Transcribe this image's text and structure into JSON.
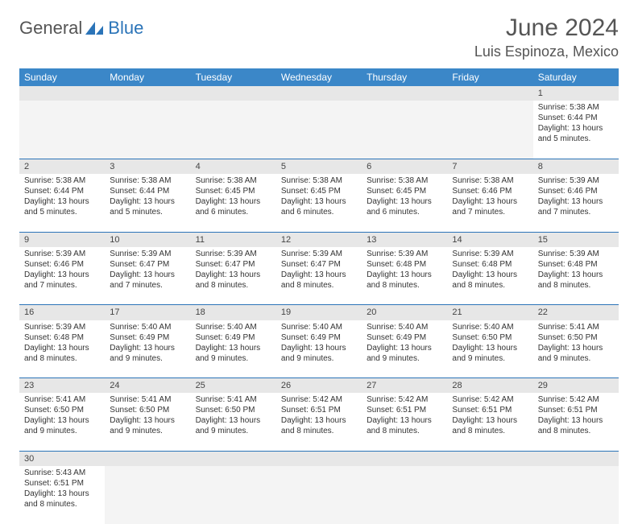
{
  "logo": {
    "part1": "General",
    "part2": "Blue"
  },
  "title": "June 2024",
  "location": "Luis Espinoza, Mexico",
  "colors": {
    "header_bg": "#3b87c8",
    "header_text": "#ffffff",
    "daynum_bg": "#e7e7e7",
    "cell_border": "#2b74b8",
    "logo_accent": "#2b74b8",
    "text": "#333333"
  },
  "dayHeaders": [
    "Sunday",
    "Monday",
    "Tuesday",
    "Wednesday",
    "Thursday",
    "Friday",
    "Saturday"
  ],
  "weeks": [
    [
      null,
      null,
      null,
      null,
      null,
      null,
      {
        "n": "1",
        "sr": "Sunrise: 5:38 AM",
        "ss": "Sunset: 6:44 PM",
        "dl": "Daylight: 13 hours and 5 minutes."
      }
    ],
    [
      {
        "n": "2",
        "sr": "Sunrise: 5:38 AM",
        "ss": "Sunset: 6:44 PM",
        "dl": "Daylight: 13 hours and 5 minutes."
      },
      {
        "n": "3",
        "sr": "Sunrise: 5:38 AM",
        "ss": "Sunset: 6:44 PM",
        "dl": "Daylight: 13 hours and 5 minutes."
      },
      {
        "n": "4",
        "sr": "Sunrise: 5:38 AM",
        "ss": "Sunset: 6:45 PM",
        "dl": "Daylight: 13 hours and 6 minutes."
      },
      {
        "n": "5",
        "sr": "Sunrise: 5:38 AM",
        "ss": "Sunset: 6:45 PM",
        "dl": "Daylight: 13 hours and 6 minutes."
      },
      {
        "n": "6",
        "sr": "Sunrise: 5:38 AM",
        "ss": "Sunset: 6:45 PM",
        "dl": "Daylight: 13 hours and 6 minutes."
      },
      {
        "n": "7",
        "sr": "Sunrise: 5:38 AM",
        "ss": "Sunset: 6:46 PM",
        "dl": "Daylight: 13 hours and 7 minutes."
      },
      {
        "n": "8",
        "sr": "Sunrise: 5:39 AM",
        "ss": "Sunset: 6:46 PM",
        "dl": "Daylight: 13 hours and 7 minutes."
      }
    ],
    [
      {
        "n": "9",
        "sr": "Sunrise: 5:39 AM",
        "ss": "Sunset: 6:46 PM",
        "dl": "Daylight: 13 hours and 7 minutes."
      },
      {
        "n": "10",
        "sr": "Sunrise: 5:39 AM",
        "ss": "Sunset: 6:47 PM",
        "dl": "Daylight: 13 hours and 7 minutes."
      },
      {
        "n": "11",
        "sr": "Sunrise: 5:39 AM",
        "ss": "Sunset: 6:47 PM",
        "dl": "Daylight: 13 hours and 8 minutes."
      },
      {
        "n": "12",
        "sr": "Sunrise: 5:39 AM",
        "ss": "Sunset: 6:47 PM",
        "dl": "Daylight: 13 hours and 8 minutes."
      },
      {
        "n": "13",
        "sr": "Sunrise: 5:39 AM",
        "ss": "Sunset: 6:48 PM",
        "dl": "Daylight: 13 hours and 8 minutes."
      },
      {
        "n": "14",
        "sr": "Sunrise: 5:39 AM",
        "ss": "Sunset: 6:48 PM",
        "dl": "Daylight: 13 hours and 8 minutes."
      },
      {
        "n": "15",
        "sr": "Sunrise: 5:39 AM",
        "ss": "Sunset: 6:48 PM",
        "dl": "Daylight: 13 hours and 8 minutes."
      }
    ],
    [
      {
        "n": "16",
        "sr": "Sunrise: 5:39 AM",
        "ss": "Sunset: 6:48 PM",
        "dl": "Daylight: 13 hours and 8 minutes."
      },
      {
        "n": "17",
        "sr": "Sunrise: 5:40 AM",
        "ss": "Sunset: 6:49 PM",
        "dl": "Daylight: 13 hours and 9 minutes."
      },
      {
        "n": "18",
        "sr": "Sunrise: 5:40 AM",
        "ss": "Sunset: 6:49 PM",
        "dl": "Daylight: 13 hours and 9 minutes."
      },
      {
        "n": "19",
        "sr": "Sunrise: 5:40 AM",
        "ss": "Sunset: 6:49 PM",
        "dl": "Daylight: 13 hours and 9 minutes."
      },
      {
        "n": "20",
        "sr": "Sunrise: 5:40 AM",
        "ss": "Sunset: 6:49 PM",
        "dl": "Daylight: 13 hours and 9 minutes."
      },
      {
        "n": "21",
        "sr": "Sunrise: 5:40 AM",
        "ss": "Sunset: 6:50 PM",
        "dl": "Daylight: 13 hours and 9 minutes."
      },
      {
        "n": "22",
        "sr": "Sunrise: 5:41 AM",
        "ss": "Sunset: 6:50 PM",
        "dl": "Daylight: 13 hours and 9 minutes."
      }
    ],
    [
      {
        "n": "23",
        "sr": "Sunrise: 5:41 AM",
        "ss": "Sunset: 6:50 PM",
        "dl": "Daylight: 13 hours and 9 minutes."
      },
      {
        "n": "24",
        "sr": "Sunrise: 5:41 AM",
        "ss": "Sunset: 6:50 PM",
        "dl": "Daylight: 13 hours and 9 minutes."
      },
      {
        "n": "25",
        "sr": "Sunrise: 5:41 AM",
        "ss": "Sunset: 6:50 PM",
        "dl": "Daylight: 13 hours and 9 minutes."
      },
      {
        "n": "26",
        "sr": "Sunrise: 5:42 AM",
        "ss": "Sunset: 6:51 PM",
        "dl": "Daylight: 13 hours and 8 minutes."
      },
      {
        "n": "27",
        "sr": "Sunrise: 5:42 AM",
        "ss": "Sunset: 6:51 PM",
        "dl": "Daylight: 13 hours and 8 minutes."
      },
      {
        "n": "28",
        "sr": "Sunrise: 5:42 AM",
        "ss": "Sunset: 6:51 PM",
        "dl": "Daylight: 13 hours and 8 minutes."
      },
      {
        "n": "29",
        "sr": "Sunrise: 5:42 AM",
        "ss": "Sunset: 6:51 PM",
        "dl": "Daylight: 13 hours and 8 minutes."
      }
    ],
    [
      {
        "n": "30",
        "sr": "Sunrise: 5:43 AM",
        "ss": "Sunset: 6:51 PM",
        "dl": "Daylight: 13 hours and 8 minutes."
      },
      null,
      null,
      null,
      null,
      null,
      null
    ]
  ]
}
